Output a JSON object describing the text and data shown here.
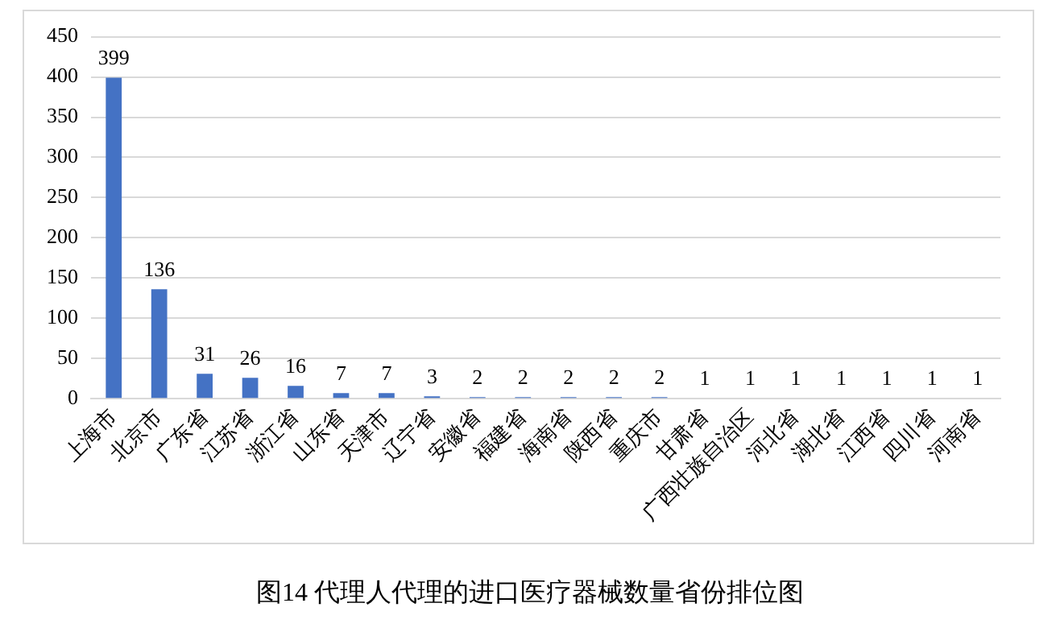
{
  "chart_data": {
    "type": "bar",
    "categories": [
      "上海市",
      "北京市",
      "广东省",
      "江苏省",
      "浙江省",
      "山东省",
      "天津市",
      "辽宁省",
      "安徽省",
      "福建省",
      "海南省",
      "陕西省",
      "重庆市",
      "甘肃省",
      "广西壮族自治区",
      "河北省",
      "湖北省",
      "江西省",
      "四川省",
      "河南省"
    ],
    "values": [
      399,
      136,
      31,
      26,
      16,
      7,
      7,
      3,
      2,
      2,
      2,
      2,
      2,
      1,
      1,
      1,
      1,
      1,
      1,
      1
    ],
    "color": "#4472c4",
    "ylim": [
      0,
      450
    ],
    "yticks": [
      0,
      50,
      100,
      150,
      200,
      250,
      300,
      350,
      400,
      450
    ],
    "grid": "y",
    "data_labels": true,
    "annotations": [
      "图14  代理人代理的进口医疗器械数量省份排位图"
    ]
  }
}
